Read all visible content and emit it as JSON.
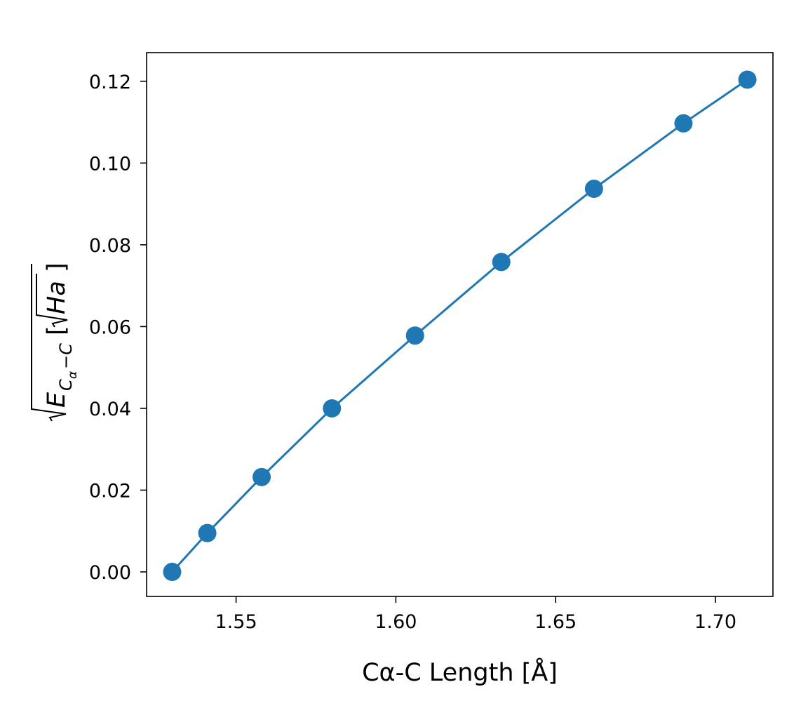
{
  "chart_data": {
    "type": "line",
    "title": "",
    "xlabel": "Cα-C Length [Å]",
    "ylabel": "√E_{Cα−C} [√Ha]",
    "ylabel_parts": {
      "base": "E",
      "sub": "C",
      "subsub": "α",
      "sub_rest": "−C",
      "unit_open": "[",
      "unit_inner": "Ha",
      "unit_close": "]"
    },
    "xlim": [
      1.522,
      1.718
    ],
    "ylim": [
      -0.006,
      0.127
    ],
    "xticks": [
      1.55,
      1.6,
      1.65,
      1.7
    ],
    "xtick_labels": [
      "1.55",
      "1.60",
      "1.65",
      "1.70"
    ],
    "yticks": [
      0.0,
      0.02,
      0.04,
      0.06,
      0.08,
      0.1,
      0.12
    ],
    "ytick_labels": [
      "0.00",
      "0.02",
      "0.04",
      "0.06",
      "0.08",
      "0.10",
      "0.12"
    ],
    "grid": false,
    "legend": false,
    "series": [
      {
        "color": "#1f77b4",
        "marker": "circle",
        "x": [
          1.53,
          1.541,
          1.558,
          1.58,
          1.606,
          1.633,
          1.662,
          1.69,
          1.71
        ],
        "y": [
          0.0,
          0.0095,
          0.0232,
          0.04,
          0.0578,
          0.0758,
          0.0937,
          0.1097,
          0.1204
        ]
      }
    ]
  }
}
